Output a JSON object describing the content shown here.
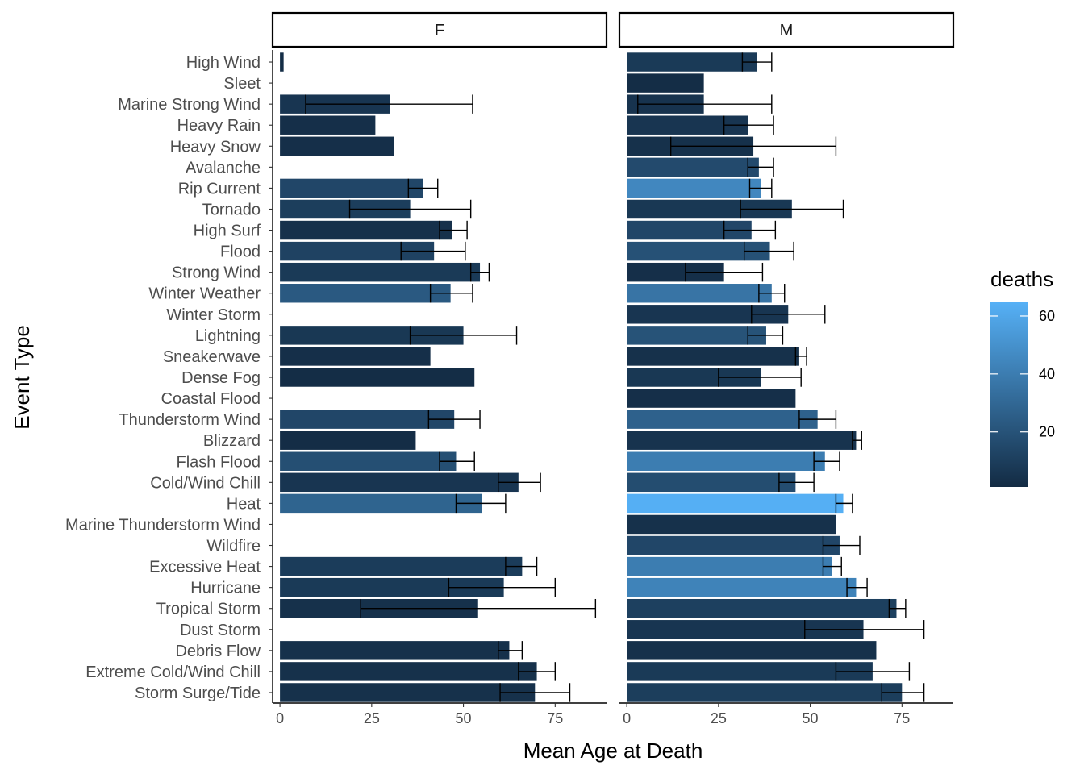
{
  "chart_data": {
    "type": "bar",
    "orientation": "horizontal",
    "xlabel": "Mean Age at Death",
    "ylabel": "Event Type",
    "xlim": [
      -2,
      89
    ],
    "xticks": [
      "0",
      "25",
      "50",
      "75"
    ],
    "xtick_values": [
      0,
      25,
      50,
      75
    ],
    "grid": false,
    "legend": {
      "title": "deaths",
      "position": "right",
      "type": "colorbar",
      "color_low": "#132B43",
      "color_high": "#56B1F7",
      "range": [
        1,
        65
      ],
      "ticks": [
        "20",
        "40",
        "60"
      ],
      "tick_values": [
        20,
        40,
        60
      ]
    },
    "categories": [
      "High Wind",
      "Sleet",
      "Marine Strong Wind",
      "Heavy Rain",
      "Heavy Snow",
      "Avalanche",
      "Rip Current",
      "Tornado",
      "High Surf",
      "Flood",
      "Strong Wind",
      "Winter Weather",
      "Winter Storm",
      "Lightning",
      "Sneakerwave",
      "Dense Fog",
      "Coastal Flood",
      "Thunderstorm Wind",
      "Blizzard",
      "Flash Flood",
      "Cold/Wind Chill",
      "Heat",
      "Marine Thunderstorm Wind",
      "Wildfire",
      "Excessive Heat",
      "Hurricane",
      "Tropical Storm",
      "Dust Storm",
      "Debris Flow",
      "Extreme Cold/Wind Chill",
      "Storm Surge/Tide"
    ],
    "panels": [
      {
        "name": "F",
        "values": [
          1,
          null,
          30,
          26,
          31,
          null,
          39,
          35.5,
          47,
          42,
          54.5,
          46.5,
          null,
          50,
          41,
          53,
          null,
          47.5,
          37,
          48,
          65,
          55,
          null,
          null,
          66,
          61,
          54,
          null,
          62.5,
          70,
          69.5
        ],
        "err_low": [
          null,
          null,
          7,
          null,
          null,
          null,
          35,
          19,
          43.5,
          33,
          52,
          41,
          null,
          35.5,
          null,
          null,
          null,
          40.5,
          null,
          43.5,
          59.5,
          48,
          null,
          null,
          61.5,
          46,
          22,
          null,
          59.5,
          65,
          60
        ],
        "err_high": [
          null,
          null,
          52.5,
          null,
          null,
          null,
          43,
          52,
          51,
          50.5,
          57,
          52.5,
          null,
          64.5,
          null,
          null,
          null,
          54.5,
          null,
          53,
          71,
          61.5,
          null,
          null,
          70,
          75,
          86,
          null,
          66,
          75,
          79
        ],
        "deaths": [
          2,
          null,
          6,
          3,
          3,
          null,
          14,
          10,
          4,
          12,
          8,
          23,
          null,
          7,
          3,
          2,
          null,
          14,
          2,
          18,
          6,
          28,
          null,
          null,
          9,
          8,
          4,
          null,
          4,
          4,
          4
        ]
      },
      {
        "name": "M",
        "values": [
          35.5,
          21,
          21,
          33,
          34.5,
          36,
          36.5,
          45,
          34,
          39,
          26.5,
          39.5,
          44,
          38,
          47,
          36.5,
          46,
          52,
          62.5,
          54,
          46,
          59,
          57,
          58,
          56,
          62.5,
          73.5,
          64.5,
          68,
          67,
          75
        ],
        "err_low": [
          31.5,
          null,
          3,
          26.5,
          12,
          33,
          33.5,
          31,
          26.5,
          32,
          16,
          36,
          34,
          33,
          46,
          25,
          null,
          47,
          61.5,
          51,
          41.5,
          57,
          null,
          53.5,
          53.5,
          60,
          71.5,
          48.5,
          null,
          57,
          69.5
        ],
        "err_high": [
          39.5,
          null,
          39.5,
          40,
          57,
          40,
          39.5,
          59,
          40.5,
          45.5,
          37,
          43,
          54,
          42.5,
          49,
          47.5,
          null,
          57,
          64,
          58,
          51,
          61.5,
          null,
          63.5,
          58.5,
          65.5,
          76,
          81,
          null,
          77,
          81
        ],
        "deaths": [
          8,
          2,
          5,
          6,
          4,
          16,
          45,
          7,
          14,
          19,
          3,
          36,
          6,
          20,
          4,
          7,
          3,
          27,
          5,
          40,
          17,
          64,
          4,
          14,
          40,
          43,
          11,
          6,
          4,
          8,
          10
        ]
      }
    ]
  }
}
